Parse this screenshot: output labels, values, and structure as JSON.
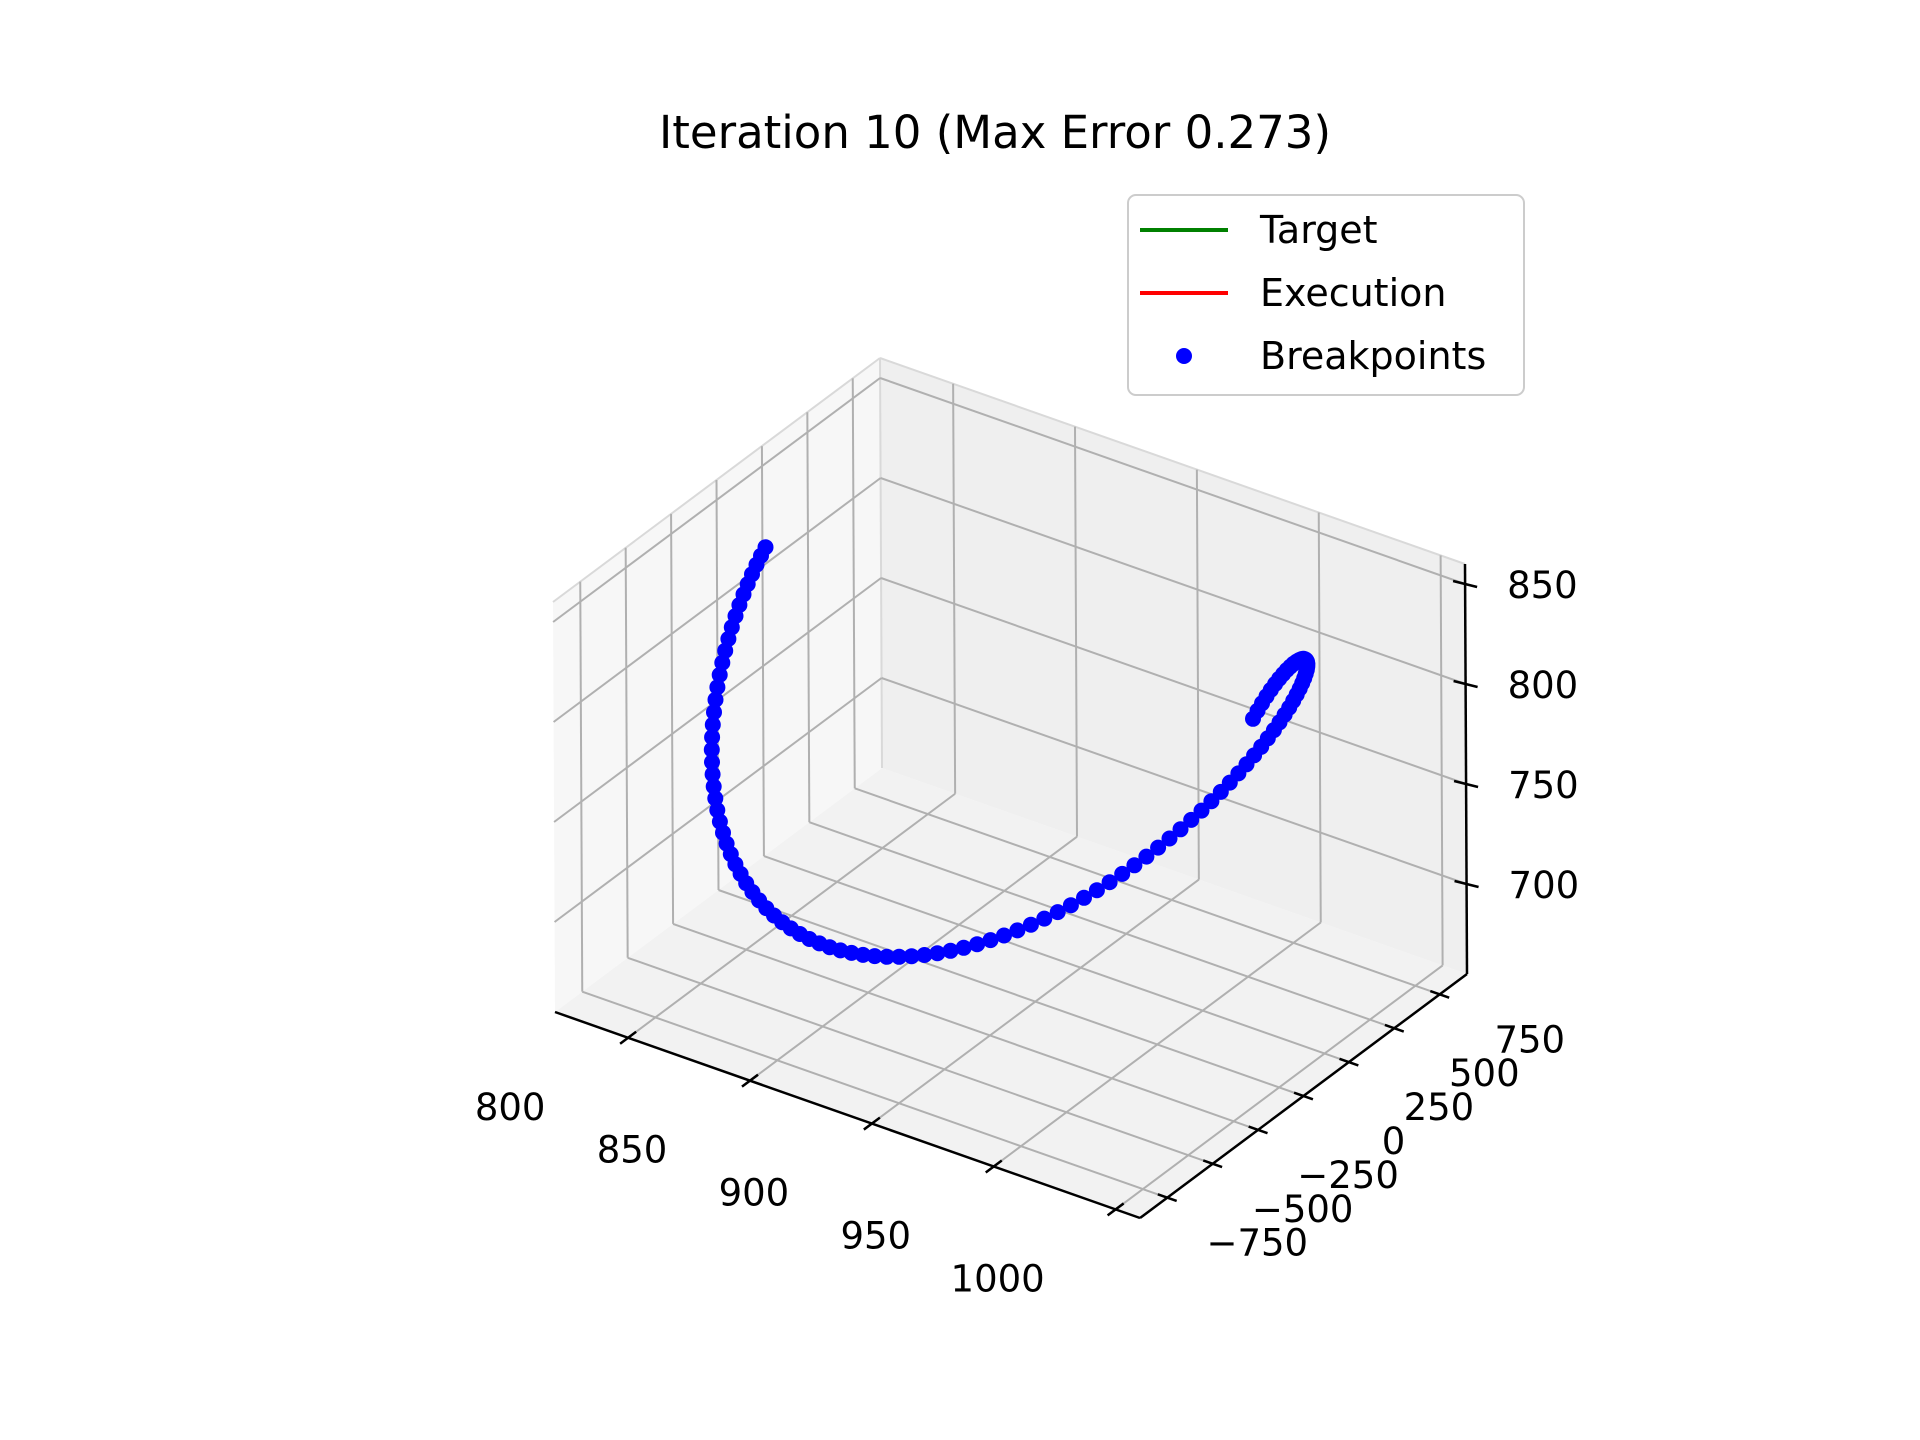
{
  "chart_data": {
    "type": "line3d",
    "title": "Iteration 10 (Max Error 0.273)",
    "xlabel": "",
    "ylabel": "",
    "zlabel": "",
    "grid": true,
    "legend_position": "top-right",
    "xlim": [
      770,
      1010
    ],
    "ylim": [
      -900,
      900
    ],
    "zlim": [
      655,
      860
    ],
    "x_ticks": [
      800,
      850,
      900,
      950,
      1000
    ],
    "y_ticks": [
      -750,
      -500,
      -250,
      0,
      250,
      500,
      750
    ],
    "y_tick_labels": [
      "−750",
      "−500",
      "−250",
      "0",
      "250",
      "500",
      "750"
    ],
    "z_ticks": [
      700,
      750,
      800,
      850
    ],
    "legend": [
      {
        "name": "Target",
        "marker": "line",
        "color": "#008000"
      },
      {
        "name": "Execution",
        "marker": "line",
        "color": "#ff0000"
      },
      {
        "name": "Breakpoints",
        "marker": "dot",
        "color": "#0000ff"
      }
    ],
    "series": [
      {
        "name": "Target",
        "color": "#008000",
        "style": "line"
      },
      {
        "name": "Execution",
        "color": "#ff0000",
        "style": "line"
      },
      {
        "name": "Breakpoints",
        "color": "#0000ff",
        "style": "markers"
      }
    ],
    "trajectory": {
      "description": "Helical sweep: x linear in parameter, y = A*cos(theta), z = z0 + B*sin(theta); Target, Execution and Breakpoints coincide",
      "num_breakpoints": 110,
      "x_range": [
        790,
        990
      ],
      "y_amplitude": 860,
      "y_phase_deg": 90,
      "z_center": 760,
      "z_amplitude": 75,
      "theta_start_deg": 0,
      "theta_end_deg": 360
    }
  }
}
